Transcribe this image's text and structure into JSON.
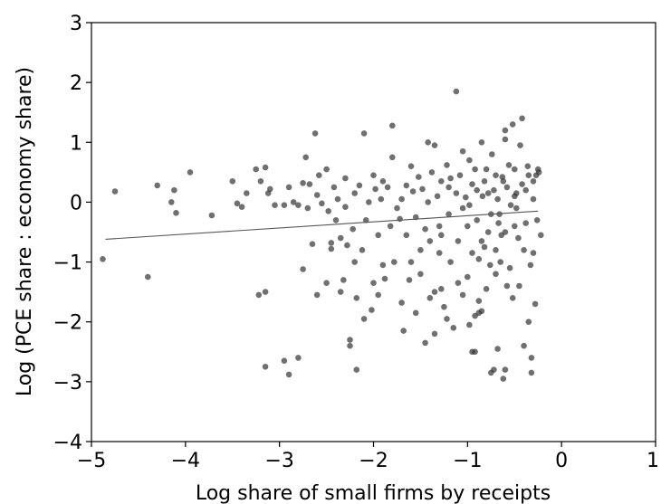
{
  "chart_data": {
    "type": "scatter",
    "title": "",
    "xlabel": "Log share of small firms by receipts",
    "ylabel": "Log (PCE share : economy share)",
    "xlim": [
      -5,
      1
    ],
    "ylim": [
      -4,
      3
    ],
    "xticks": [
      -5,
      -4,
      -3,
      -2,
      -1,
      0,
      1
    ],
    "yticks": [
      -4,
      -3,
      -2,
      -1,
      0,
      1,
      2,
      3
    ],
    "xtick_labels": [
      "−5",
      "−4",
      "−3",
      "−2",
      "−1",
      "0",
      "1"
    ],
    "ytick_labels": [
      "−4",
      "−3",
      "−2",
      "−1",
      "0",
      "1",
      "2",
      "3"
    ],
    "grid": false,
    "colors": {
      "points": "#333333",
      "fit_line": "#555555",
      "axes": "#000000"
    },
    "fit_line": {
      "x": [
        -4.85,
        -0.25
      ],
      "y": [
        -0.62,
        -0.15
      ]
    },
    "points": [
      [
        -4.88,
        -0.95
      ],
      [
        -4.75,
        0.18
      ],
      [
        -4.4,
        -1.25
      ],
      [
        -4.3,
        0.28
      ],
      [
        -4.15,
        0.0
      ],
      [
        -4.12,
        0.2
      ],
      [
        -4.1,
        -0.18
      ],
      [
        -3.95,
        0.5
      ],
      [
        -3.72,
        -0.22
      ],
      [
        -3.5,
        0.35
      ],
      [
        -3.45,
        -0.02
      ],
      [
        -3.35,
        0.15
      ],
      [
        -3.4,
        -0.08
      ],
      [
        -3.22,
        -1.55
      ],
      [
        -3.25,
        0.55
      ],
      [
        -3.2,
        0.35
      ],
      [
        -3.15,
        0.58
      ],
      [
        -3.15,
        -2.75
      ],
      [
        -3.12,
        0.15
      ],
      [
        -3.1,
        0.22
      ],
      [
        -3.15,
        -1.5
      ],
      [
        -3.05,
        -0.05
      ],
      [
        -2.95,
        -0.05
      ],
      [
        -2.9,
        0.25
      ],
      [
        -2.95,
        -2.65
      ],
      [
        -2.9,
        -2.88
      ],
      [
        -2.85,
        0.0
      ],
      [
        -2.8,
        -0.05
      ],
      [
        -2.8,
        -2.6
      ],
      [
        -2.75,
        -1.12
      ],
      [
        -2.75,
        0.32
      ],
      [
        -2.72,
        0.75
      ],
      [
        -2.7,
        -0.1
      ],
      [
        -2.68,
        0.3
      ],
      [
        -2.65,
        -0.7
      ],
      [
        -2.62,
        1.15
      ],
      [
        -2.6,
        -1.55
      ],
      [
        -2.6,
        0.12
      ],
      [
        -2.58,
        0.45
      ],
      [
        -2.55,
        -0.02
      ],
      [
        -2.5,
        -1.35
      ],
      [
        -2.5,
        0.55
      ],
      [
        -2.48,
        -0.15
      ],
      [
        -2.45,
        -0.68
      ],
      [
        -2.45,
        -0.78
      ],
      [
        -2.42,
        0.25
      ],
      [
        -2.4,
        -0.3
      ],
      [
        -2.38,
        0.05
      ],
      [
        -2.35,
        -0.6
      ],
      [
        -2.35,
        -1.5
      ],
      [
        -2.32,
        -1.3
      ],
      [
        -2.3,
        -0.08
      ],
      [
        -2.3,
        0.4
      ],
      [
        -2.28,
        -0.72
      ],
      [
        -2.25,
        -2.3
      ],
      [
        -2.25,
        -2.4
      ],
      [
        -2.22,
        -0.45
      ],
      [
        -2.2,
        -1.0
      ],
      [
        -2.2,
        0.15
      ],
      [
        -2.18,
        -1.6
      ],
      [
        -2.18,
        -2.8
      ],
      [
        -2.15,
        0.28
      ],
      [
        -2.12,
        -0.8
      ],
      [
        -2.1,
        1.15
      ],
      [
        -2.1,
        -1.95
      ],
      [
        -2.08,
        -0.3
      ],
      [
        -2.05,
        0.0
      ],
      [
        -2.02,
        -1.8
      ],
      [
        -2.0,
        0.45
      ],
      [
        -2.0,
        -1.35
      ],
      [
        -1.98,
        0.22
      ],
      [
        -1.95,
        -0.55
      ],
      [
        -1.95,
        -1.55
      ],
      [
        -1.92,
        0.05
      ],
      [
        -1.9,
        -1.05
      ],
      [
        -1.9,
        0.35
      ],
      [
        -1.88,
        -1.28
      ],
      [
        -1.85,
        0.25
      ],
      [
        -1.82,
        -0.4
      ],
      [
        -1.8,
        1.28
      ],
      [
        -1.8,
        0.75
      ],
      [
        -1.78,
        -1.0
      ],
      [
        -1.75,
        -0.1
      ],
      [
        -1.72,
        -0.28
      ],
      [
        -1.7,
        0.05
      ],
      [
        -1.7,
        -1.68
      ],
      [
        -1.68,
        -2.15
      ],
      [
        -1.65,
        0.28
      ],
      [
        -1.65,
        -0.55
      ],
      [
        -1.62,
        -1.3
      ],
      [
        -1.6,
        0.6
      ],
      [
        -1.6,
        -1.0
      ],
      [
        -1.58,
        0.18
      ],
      [
        -1.55,
        -0.25
      ],
      [
        -1.55,
        -1.85
      ],
      [
        -1.52,
        0.42
      ],
      [
        -1.5,
        -0.8
      ],
      [
        -1.5,
        -1.2
      ],
      [
        -1.48,
        0.22
      ],
      [
        -1.45,
        -0.45
      ],
      [
        -1.45,
        -2.35
      ],
      [
        -1.42,
        1.0
      ],
      [
        -1.42,
        0.0
      ],
      [
        -1.4,
        -0.65
      ],
      [
        -1.4,
        -1.6
      ],
      [
        -1.38,
        0.5
      ],
      [
        -1.35,
        -1.5
      ],
      [
        -1.35,
        -2.2
      ],
      [
        -1.32,
        0.1
      ],
      [
        -1.3,
        -0.4
      ],
      [
        -1.3,
        -0.85
      ],
      [
        -1.28,
        0.35
      ],
      [
        -1.28,
        -1.45
      ],
      [
        -1.25,
        -1.75
      ],
      [
        -1.22,
        0.62
      ],
      [
        -1.2,
        -0.2
      ],
      [
        -1.2,
        0.25
      ],
      [
        -1.18,
        -1.0
      ],
      [
        -1.15,
        -2.1
      ],
      [
        -1.12,
        1.85
      ],
      [
        -1.12,
        0.15
      ],
      [
        -1.1,
        -0.65
      ],
      [
        -1.1,
        -1.35
      ],
      [
        -1.08,
        0.45
      ],
      [
        -1.05,
        -0.1
      ],
      [
        -1.05,
        -1.55
      ],
      [
        -1.02,
        0.08
      ],
      [
        -1.0,
        -0.4
      ],
      [
        -1.0,
        -1.25
      ],
      [
        -0.98,
        -2.05
      ],
      [
        -0.98,
        0.7
      ],
      [
        -0.95,
        0.3
      ],
      [
        -0.95,
        -0.85
      ],
      [
        -0.92,
        -1.9
      ],
      [
        -0.9,
        0.2
      ],
      [
        -0.9,
        -0.3
      ],
      [
        -0.88,
        -1.65
      ],
      [
        -0.85,
        1.0
      ],
      [
        -0.85,
        -0.65
      ],
      [
        -0.82,
        0.35
      ],
      [
        -0.8,
        -1.45
      ],
      [
        -0.78,
        0.15
      ],
      [
        -0.75,
        -0.2
      ],
      [
        -0.75,
        -2.85
      ],
      [
        -0.72,
        -2.8
      ],
      [
        -0.7,
        0.45
      ],
      [
        -0.7,
        -1.2
      ],
      [
        -0.68,
        0.05
      ],
      [
        -0.65,
        -1.0
      ],
      [
        -0.62,
        -2.95
      ],
      [
        -0.6,
        1.2
      ],
      [
        -0.6,
        -0.5
      ],
      [
        -0.58,
        0.25
      ],
      [
        -0.55,
        -1.1
      ],
      [
        -0.52,
        1.3
      ],
      [
        -0.5,
        0.55
      ],
      [
        -0.5,
        -0.4
      ],
      [
        -0.48,
        0.15
      ],
      [
        -0.45,
        -1.4
      ],
      [
        -0.42,
        1.4
      ],
      [
        -0.4,
        -0.8
      ],
      [
        -0.38,
        0.2
      ],
      [
        -0.35,
        -2.0
      ],
      [
        -0.32,
        -2.85
      ],
      [
        -0.3,
        0.35
      ],
      [
        -0.28,
        -1.7
      ],
      [
        -0.25,
        0.55
      ],
      [
        -0.22,
        -0.55
      ],
      [
        -1.35,
        0.95
      ],
      [
        -1.28,
        -0.55
      ],
      [
        -1.22,
        -1.95
      ],
      [
        -1.18,
        0.4
      ],
      [
        -1.05,
        0.85
      ],
      [
        -0.98,
        -0.05
      ],
      [
        -0.92,
        0.55
      ],
      [
        -0.88,
        -0.95
      ],
      [
        -0.84,
        0.1
      ],
      [
        -0.78,
        -0.5
      ],
      [
        -0.74,
        0.8
      ],
      [
        -0.7,
        -0.8
      ],
      [
        -0.66,
        -0.2
      ],
      [
        -0.62,
        0.35
      ],
      [
        -0.58,
        -1.4
      ],
      [
        -0.54,
        -0.05
      ],
      [
        -0.5,
        0.1
      ],
      [
        -0.46,
        -0.6
      ],
      [
        -0.42,
        0.3
      ],
      [
        -0.38,
        -0.35
      ],
      [
        -0.35,
        0.45
      ],
      [
        -0.32,
        -2.6
      ],
      [
        -0.3,
        -0.85
      ],
      [
        -0.26,
        -0.3
      ],
      [
        -0.95,
        -2.5
      ],
      [
        -0.92,
        -2.5
      ],
      [
        -0.88,
        -1.85
      ],
      [
        -0.85,
        -1.82
      ],
      [
        -0.82,
        -0.75
      ],
      [
        -0.8,
        0.55
      ],
      [
        -0.76,
        -1.05
      ],
      [
        -0.72,
        0.2
      ],
      [
        -0.68,
        -2.45
      ],
      [
        -0.64,
        -0.55
      ],
      [
        -0.6,
        -2.8
      ],
      [
        -0.56,
        0.62
      ],
      [
        -0.52,
        -1.6
      ],
      [
        -0.48,
        -0.1
      ],
      [
        -0.44,
        0.95
      ],
      [
        -0.4,
        -2.4
      ],
      [
        -0.36,
        0.6
      ],
      [
        -0.33,
        -1.05
      ],
      [
        -0.3,
        0.05
      ],
      [
        -0.27,
        0.45
      ],
      [
        -0.24,
        0.5
      ],
      [
        -0.6,
        1.05
      ],
      [
        -0.63,
        0.42
      ],
      [
        -0.67,
        -0.35
      ]
    ]
  }
}
